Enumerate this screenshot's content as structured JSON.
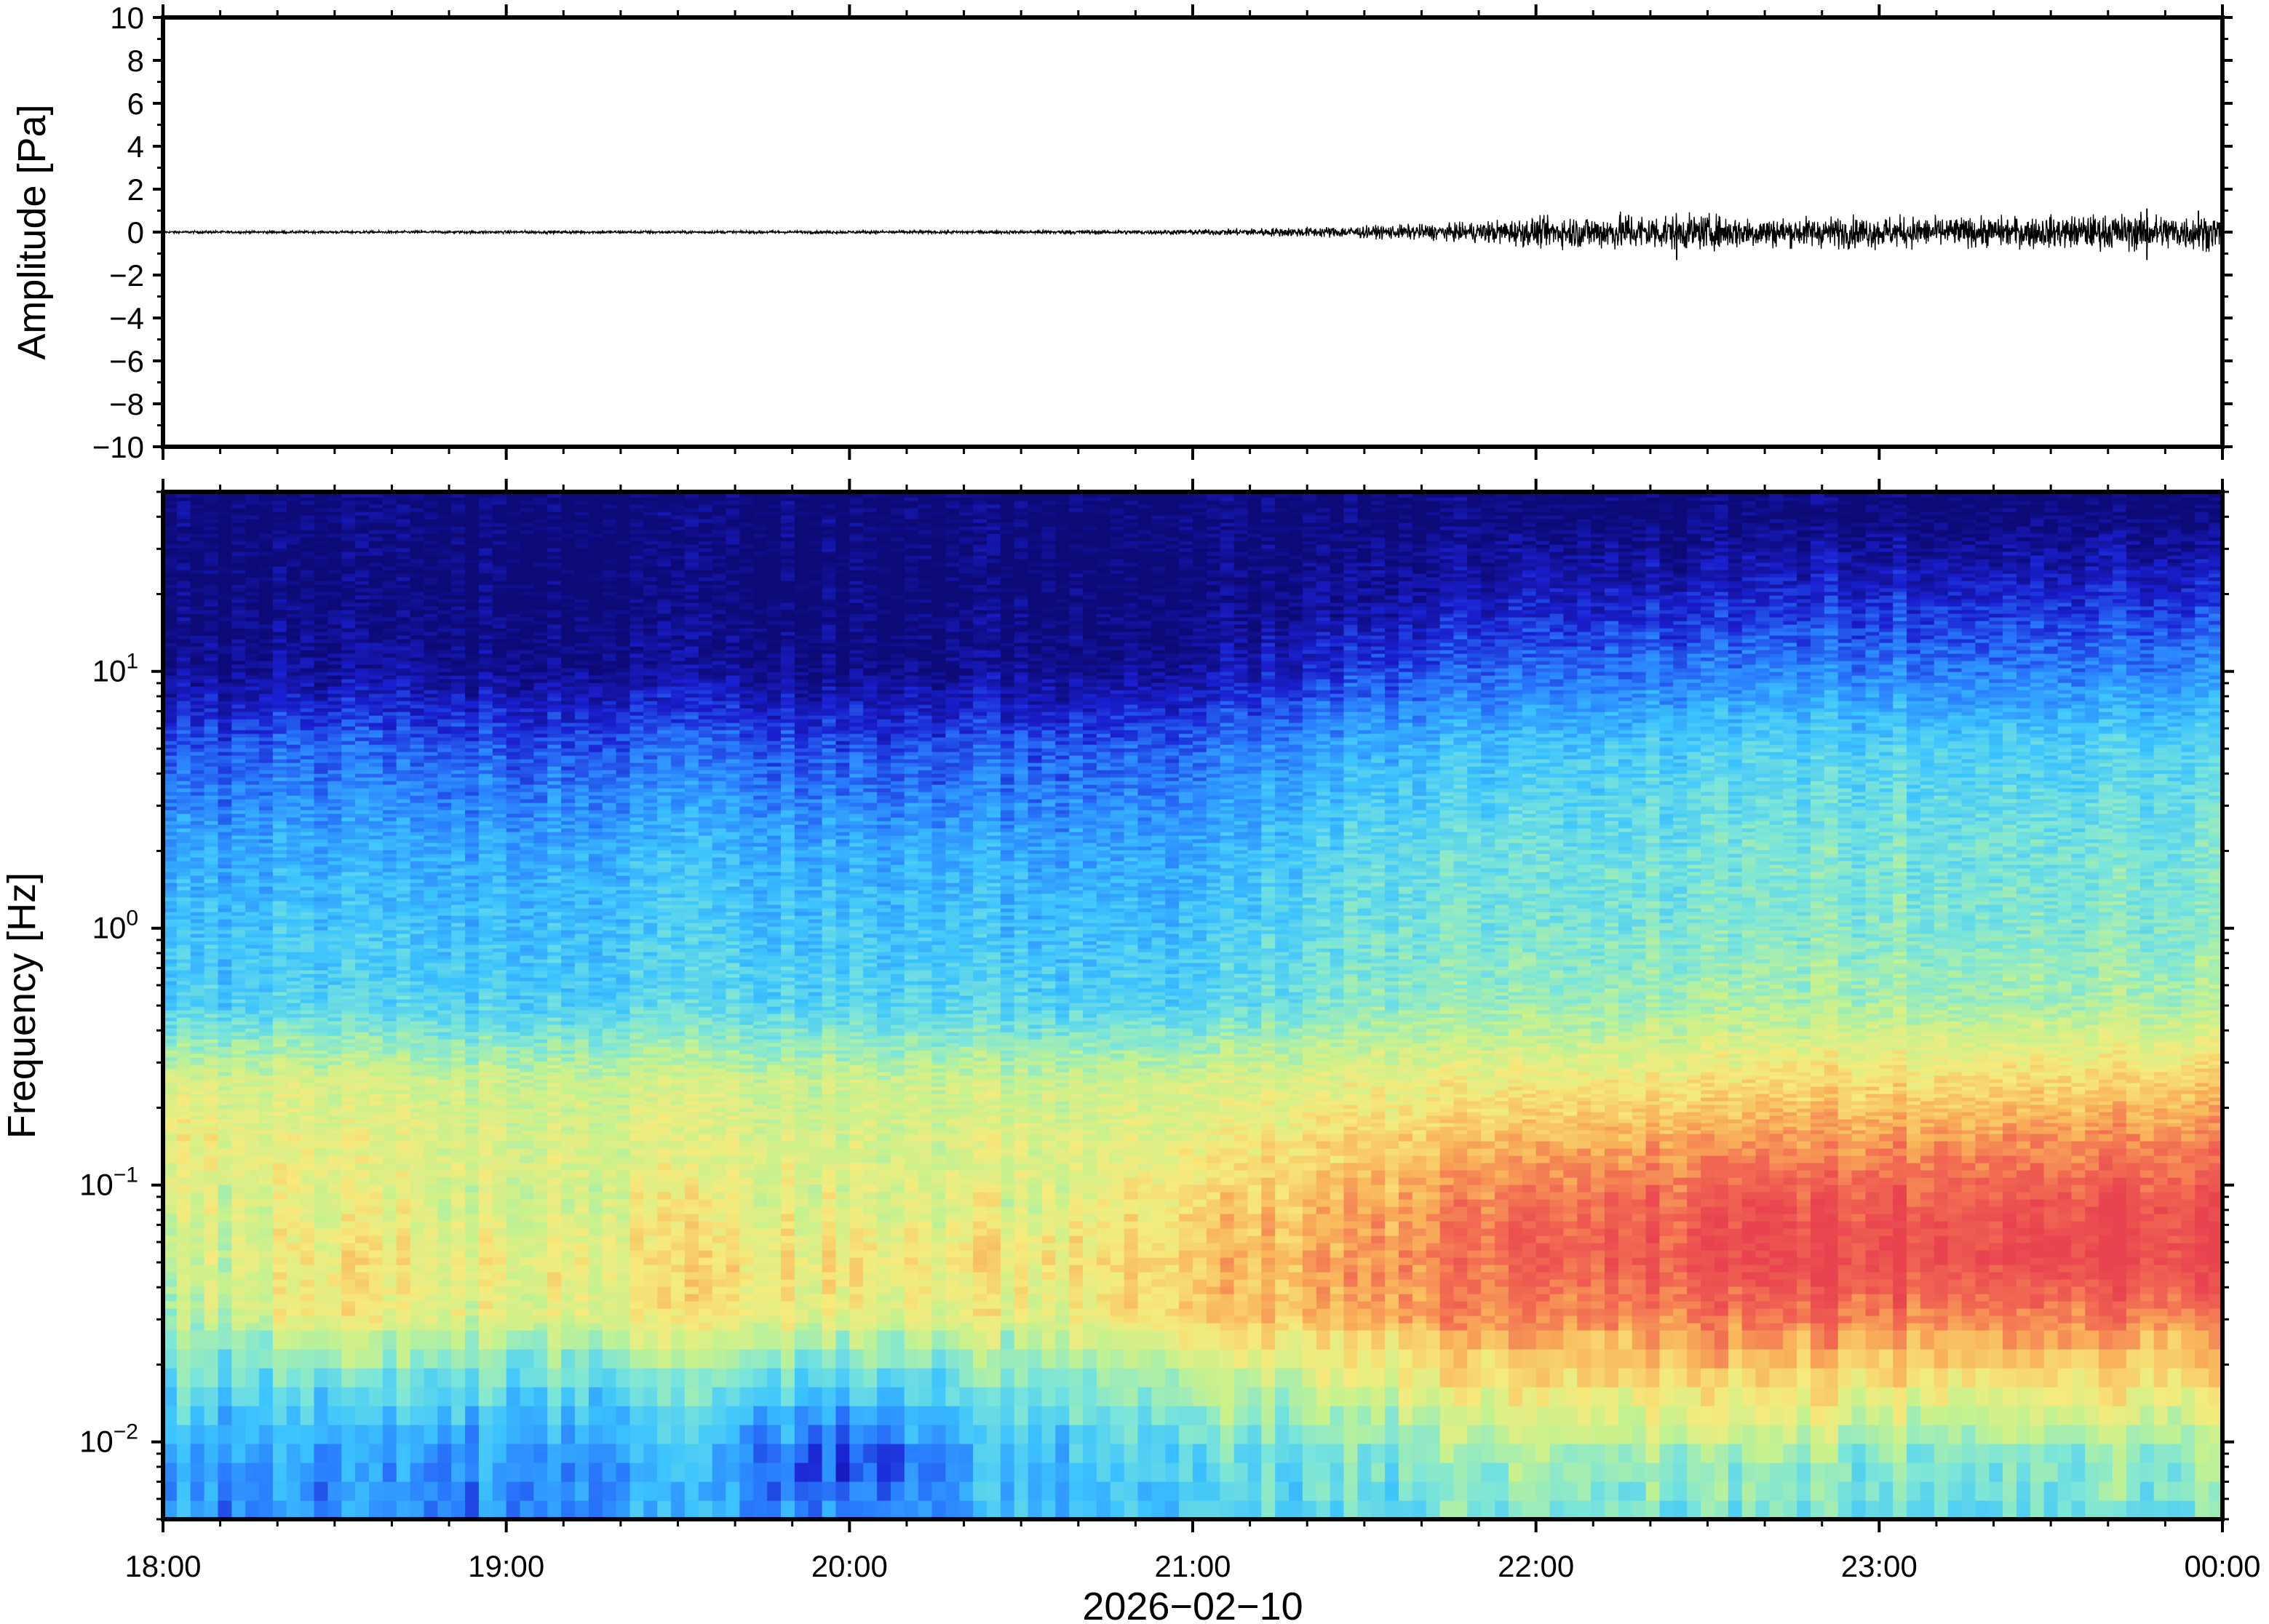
{
  "chart_data": [
    {
      "type": "line",
      "panel": "waveform",
      "ylabel": "Amplitude [Pa]",
      "ylim": [
        -10,
        10
      ],
      "yticks": [
        10,
        8,
        6,
        4,
        2,
        0,
        -2,
        -4,
        -6,
        -8,
        -10
      ],
      "ytick_labels": [
        "10",
        "8",
        "6",
        "4",
        "2",
        "0",
        "−2",
        "−4",
        "−6",
        "−8",
        "−10"
      ],
      "xlim": [
        "18:00",
        "00:00"
      ],
      "trace_color": "#000000",
      "series": [
        {
          "x_hours": [
            18.0,
            18.5,
            19.0,
            19.5,
            20.0,
            20.5,
            21.0,
            21.25,
            21.5,
            21.75,
            22.0,
            22.25,
            22.5,
            22.75,
            23.0,
            23.25,
            23.5,
            23.75,
            24.0
          ],
          "envelope_pa": [
            0.05,
            0.05,
            0.06,
            0.06,
            0.06,
            0.07,
            0.1,
            0.18,
            0.25,
            0.35,
            0.6,
            0.75,
            0.7,
            0.6,
            0.65,
            0.6,
            0.65,
            0.75,
            0.7
          ],
          "peak_excursions": [
            {
              "x_hours": 22.41,
              "y": -1.3
            },
            {
              "x_hours": 22.27,
              "y": 0.8
            },
            {
              "x_hours": 23.78,
              "y": 1.1
            },
            {
              "x_hours": 23.78,
              "y": -1.3
            },
            {
              "x_hours": 23.93,
              "y": 1.0
            }
          ]
        }
      ]
    },
    {
      "type": "heatmap",
      "panel": "spectrogram",
      "ylabel": "Frequency [Hz]",
      "yscale": "log",
      "ylim_hz": [
        0.005,
        50
      ],
      "ytick_labels": [
        {
          "base": "10",
          "exp": "1"
        },
        {
          "base": "10",
          "exp": "0"
        },
        {
          "base": "10",
          "exp": "−1"
        },
        {
          "base": "10",
          "exp": "−2"
        }
      ],
      "ytick_values": [
        10,
        1,
        0.1,
        0.01
      ],
      "xlabel": "2026−02−10",
      "xticks": [
        "18:00",
        "19:00",
        "20:00",
        "21:00",
        "22:00",
        "23:00",
        "00:00"
      ],
      "colormap": [
        "#0d0a78",
        "#1a1fd0",
        "#2a80ff",
        "#3cc3ff",
        "#7de6d8",
        "#c6f28f",
        "#f6ea7c",
        "#f9b45a",
        "#f26a52",
        "#e8434f"
      ],
      "time_hours": [
        18.0,
        18.5,
        19.0,
        19.5,
        20.0,
        20.5,
        21.0,
        21.5,
        22.0,
        22.5,
        23.0,
        23.5,
        24.0
      ],
      "profile_levels_note_free": true,
      "rows": [
        {
          "hz": 40,
          "levels": [
            0,
            0,
            0,
            0,
            0,
            0,
            0,
            0,
            0,
            0,
            0,
            0,
            0
          ]
        },
        {
          "hz": 20,
          "levels": [
            0,
            0,
            0,
            0,
            0,
            0,
            0,
            0.3,
            0.8,
            0.9,
            1.0,
            1.0,
            1.1
          ]
        },
        {
          "hz": 10,
          "levels": [
            0.2,
            0.4,
            0.3,
            0.4,
            0.2,
            0.3,
            0.4,
            1.3,
            1.8,
            2.0,
            2.1,
            2.0,
            2.2
          ]
        },
        {
          "hz": 5,
          "levels": [
            1.5,
            1.7,
            1.6,
            1.8,
            1.5,
            1.6,
            1.7,
            2.7,
            3.1,
            3.3,
            3.4,
            3.3,
            3.5
          ]
        },
        {
          "hz": 2,
          "levels": [
            2.5,
            2.7,
            2.6,
            2.9,
            2.7,
            2.6,
            2.6,
            3.5,
            3.8,
            3.9,
            4.0,
            3.9,
            4.0
          ]
        },
        {
          "hz": 1,
          "levels": [
            3.0,
            3.1,
            3.0,
            3.2,
            3.1,
            3.0,
            3.0,
            3.8,
            4.0,
            4.1,
            4.2,
            4.1,
            4.2
          ]
        },
        {
          "hz": 0.5,
          "levels": [
            3.3,
            3.4,
            3.3,
            3.5,
            3.5,
            3.4,
            3.4,
            4.2,
            4.4,
            4.6,
            4.7,
            4.6,
            4.8
          ]
        },
        {
          "hz": 0.25,
          "levels": [
            5.4,
            5.3,
            5.2,
            5.3,
            5.2,
            5.2,
            5.3,
            5.6,
            5.9,
            6.1,
            6.3,
            6.3,
            6.5
          ]
        },
        {
          "hz": 0.15,
          "levels": [
            5.8,
            5.6,
            5.4,
            5.5,
            5.4,
            5.5,
            5.6,
            6.3,
            6.9,
            7.2,
            7.4,
            7.4,
            7.6
          ]
        },
        {
          "hz": 0.08,
          "levels": [
            5.3,
            5.6,
            5.4,
            5.8,
            5.6,
            5.5,
            6.3,
            7.0,
            8.0,
            8.4,
            8.6,
            8.6,
            8.7
          ]
        },
        {
          "hz": 0.05,
          "levels": [
            5.0,
            6.0,
            5.8,
            6.2,
            6.1,
            6.0,
            6.6,
            7.2,
            8.3,
            8.7,
            8.9,
            8.9,
            8.9
          ]
        },
        {
          "hz": 0.03,
          "levels": [
            4.6,
            5.8,
            5.5,
            6.0,
            5.8,
            5.6,
            6.5,
            7.0,
            7.6,
            7.8,
            7.9,
            7.8,
            7.7
          ]
        },
        {
          "hz": 0.015,
          "levels": [
            3.5,
            3.6,
            3.6,
            3.8,
            3.4,
            3.8,
            4.6,
            5.3,
            6.1,
            6.2,
            6.1,
            6.0,
            6.1
          ]
        },
        {
          "hz": 0.008,
          "levels": [
            2.6,
            2.3,
            2.4,
            2.8,
            1.4,
            3.0,
            3.4,
            3.8,
            4.6,
            4.5,
            4.3,
            4.2,
            4.4
          ]
        },
        {
          "hz": 0.005,
          "levels": [
            2.5,
            2.1,
            2.3,
            2.7,
            2.0,
            2.9,
            3.3,
            3.5,
            4.2,
            4.0,
            3.9,
            3.8,
            4.0
          ]
        }
      ]
    }
  ]
}
